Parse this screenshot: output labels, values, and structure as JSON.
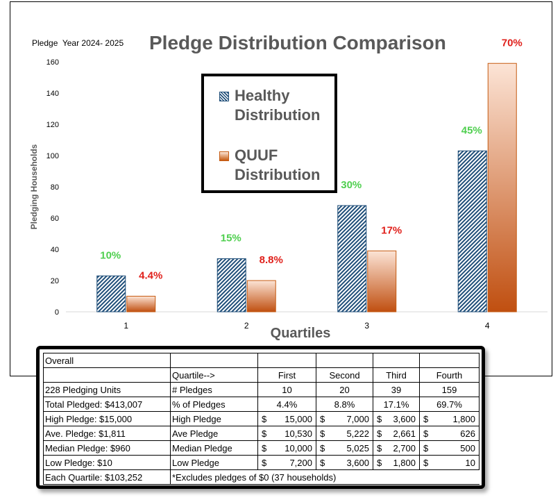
{
  "chart_data": {
    "type": "bar",
    "title": "Pledge Distribution Comparison",
    "subtitle": "Pledge  Year 2024- 2025",
    "xlabel": "Quartiles",
    "ylabel": "Pledging Households",
    "categories": [
      "1",
      "2",
      "3",
      "4"
    ],
    "ylim": [
      0,
      160
    ],
    "yticks": [
      "0",
      "20",
      "40",
      "60",
      "80",
      "100",
      "120",
      "140",
      "160"
    ],
    "grid": false,
    "legend_position": "top-center",
    "series": [
      {
        "name": "Healthy Distribution",
        "values": [
          23,
          34,
          68,
          103
        ],
        "labels": [
          "10%",
          "15%",
          "30%",
          "45%"
        ],
        "color": "#1f4e79",
        "label_color": "#4fcf4f"
      },
      {
        "name": "QUUF Distribution",
        "values": [
          10,
          20,
          39,
          159
        ],
        "labels": [
          "4.4%",
          "8.8%",
          "17%",
          "70%"
        ],
        "color": "#c55a11",
        "label_color": "#e0201b"
      }
    ]
  },
  "table": {
    "header_row": [
      "Overall",
      "",
      "",
      "",
      "",
      ""
    ],
    "quartile_row": [
      "",
      "Quartile-->",
      "First",
      "Second",
      "Third",
      "Fourth"
    ],
    "rows": [
      {
        "left": "228 Pledging Units",
        "metric": "# Pledges",
        "values": [
          "10",
          "20",
          "39",
          "159"
        ]
      },
      {
        "left": "Total Pledged: $413,007",
        "metric": "% of Pledges",
        "values": [
          "4.4%",
          "8.8%",
          "17.1%",
          "69.7%"
        ]
      },
      {
        "left": "High Pledge: $15,000",
        "metric": "High Pledge",
        "money": true,
        "values": [
          "15,000",
          "7,000",
          "3,600",
          "1,800"
        ]
      },
      {
        "left": "Ave. Pledge: $1,811",
        "metric": "Ave Pledge",
        "money": true,
        "values": [
          "10,530",
          "5,222",
          "2,661",
          "626"
        ]
      },
      {
        "left": "Median Pledge:  $960",
        "metric": "Median Pledge",
        "money": true,
        "values": [
          "10,000",
          "5,025",
          "2,700",
          "500"
        ]
      },
      {
        "left": "Low Pledge:      $10",
        "metric": "Low Pledge",
        "money": true,
        "values": [
          "7,200",
          "3,600",
          "1,800",
          "10"
        ]
      }
    ],
    "currency_symbol": "$",
    "footer_left": "Each Quartile:   $103,252",
    "footnote": "*Excludes pledges of $0 (37 households)"
  }
}
